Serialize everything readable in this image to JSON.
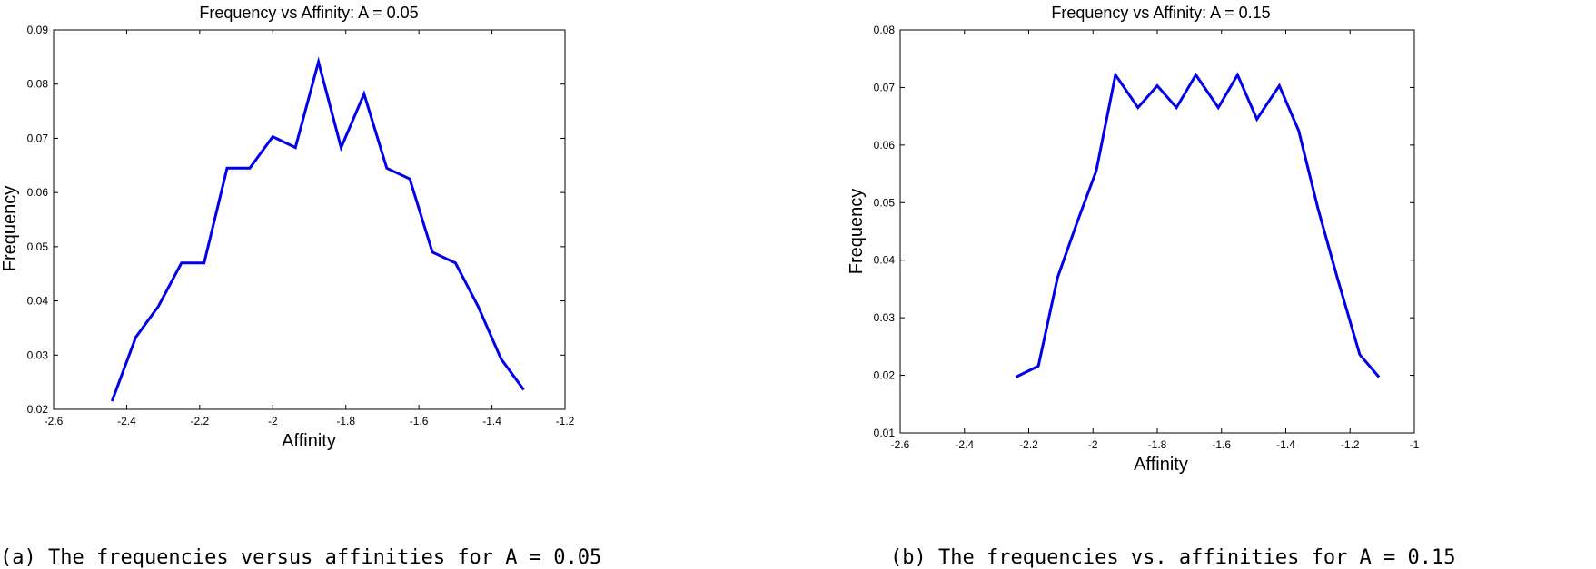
{
  "colors": {
    "series": "#0000ee"
  },
  "chart_data": [
    {
      "type": "line",
      "title": "Frequency vs Affinity: A = 0.05",
      "xlabel": "Affinity",
      "ylabel": "Frequency",
      "caption": "(a) The frequencies versus affinities for A = 0.05",
      "xlim": [
        -2.6,
        -1.2
      ],
      "ylim": [
        0.02,
        0.09
      ],
      "xticks": [
        -2.6,
        -2.4,
        -2.2,
        -2.0,
        -1.8,
        -1.6,
        -1.4,
        -1.2
      ],
      "xtick_labels": [
        "-2.6",
        "-2.4",
        "-2.2",
        "-2",
        "-1.8",
        "-1.6",
        "-1.4",
        "-1.2"
      ],
      "yticks": [
        0.02,
        0.03,
        0.04,
        0.05,
        0.06,
        0.07,
        0.08,
        0.09
      ],
      "ytick_labels": [
        "0.02",
        "0.03",
        "0.04",
        "0.05",
        "0.06",
        "0.07",
        "0.08",
        "0.09"
      ],
      "grid": false,
      "series": [
        {
          "x": [
            -2.44,
            -2.375,
            -2.313,
            -2.25,
            -2.188,
            -2.125,
            -2.063,
            -2.0,
            -1.938,
            -1.875,
            -1.813,
            -1.75,
            -1.688,
            -1.625,
            -1.563,
            -1.5,
            -1.438,
            -1.375,
            -1.313
          ],
          "y": [
            0.0215,
            0.0333,
            0.039,
            0.047,
            0.047,
            0.0645,
            0.0645,
            0.0703,
            0.0683,
            0.0841,
            0.0683,
            0.0782,
            0.0645,
            0.0625,
            0.049,
            0.047,
            0.039,
            0.0293,
            0.0236
          ]
        }
      ]
    },
    {
      "type": "line",
      "title": "Frequency vs Affinity: A = 0.15",
      "xlabel": "Affinity",
      "ylabel": "Frequency",
      "caption": "(b) The frequencies vs. affinities for A = 0.15",
      "xlim": [
        -2.6,
        -1.0
      ],
      "ylim": [
        0.01,
        0.08
      ],
      "xticks": [
        -2.6,
        -2.4,
        -2.2,
        -2.0,
        -1.8,
        -1.6,
        -1.4,
        -1.2,
        -1.0
      ],
      "xtick_labels": [
        "-2.6",
        "-2.4",
        "-2.2",
        "-2",
        "-1.8",
        "-1.6",
        "-1.4",
        "-1.2",
        "-1"
      ],
      "yticks": [
        0.01,
        0.02,
        0.03,
        0.04,
        0.05,
        0.06,
        0.07,
        0.08
      ],
      "ytick_labels": [
        "0.01",
        "0.02",
        "0.03",
        "0.04",
        "0.05",
        "0.06",
        "0.07",
        "0.08"
      ],
      "grid": false,
      "series": [
        {
          "x": [
            -2.24,
            -2.17,
            -2.11,
            -2.05,
            -1.99,
            -1.93,
            -1.86,
            -1.8,
            -1.74,
            -1.68,
            -1.61,
            -1.55,
            -1.49,
            -1.42,
            -1.36,
            -1.3,
            -1.24,
            -1.17,
            -1.11
          ],
          "y": [
            0.0197,
            0.0216,
            0.037,
            0.0465,
            0.0555,
            0.0722,
            0.0665,
            0.0703,
            0.0665,
            0.0722,
            0.0665,
            0.0722,
            0.0645,
            0.0703,
            0.0625,
            0.049,
            0.037,
            0.0236,
            0.0197
          ]
        }
      ]
    }
  ]
}
